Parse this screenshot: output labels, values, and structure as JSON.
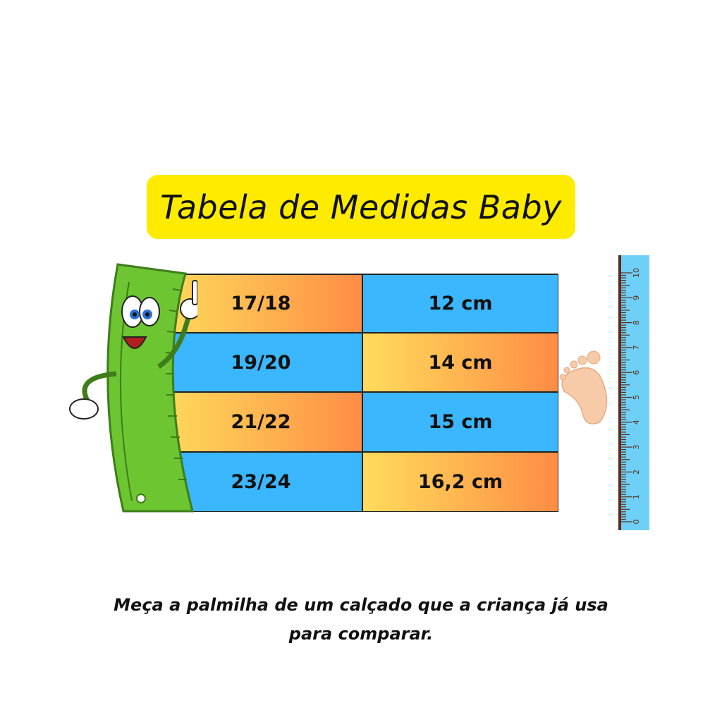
{
  "title": "Tabela de Medidas Baby",
  "table": {
    "rows": [
      {
        "size": "17/18",
        "length": "12 cm"
      },
      {
        "size": "19/20",
        "length": "14 cm"
      },
      {
        "size": "21/22",
        "length": "15 cm"
      },
      {
        "size": "23/24",
        "length": "16,2 cm"
      }
    ]
  },
  "ruler": {
    "labels": [
      "0",
      "1",
      "2",
      "3",
      "4",
      "5",
      "6",
      "7",
      "8",
      "9",
      "10"
    ]
  },
  "note": {
    "line1": "Meça a palmilha de um calçado que a criança já usa",
    "line2": "para comparar."
  },
  "colors": {
    "title_bg": "#FFEB00",
    "blue": "#3BB7FF",
    "gradient_start": "#FFDB5C",
    "gradient_end": "#FF8C45",
    "ruler": "#6FD0F7",
    "mascot": "#6CC531"
  }
}
